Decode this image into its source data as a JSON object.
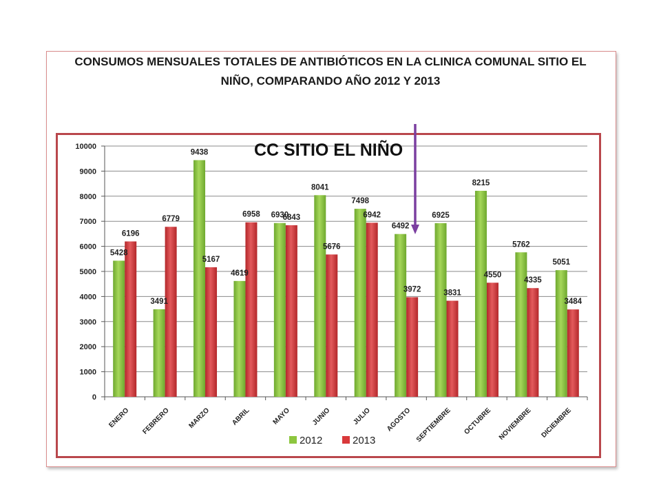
{
  "slide": {
    "title_line1": "CONSUMOS MENSUALES TOTALES DE ANTIBIÓTICOS EN LA CLINICA COMUNAL SITIO EL",
    "title_line2": "NIÑO, COMPARANDO AÑO 2012 Y 2013"
  },
  "chart_data": {
    "type": "bar",
    "title": "CC SITIO EL NIÑO",
    "xlabel": "",
    "ylabel": "",
    "ylim": [
      0,
      10000
    ],
    "yticks": [
      0,
      1000,
      2000,
      3000,
      4000,
      5000,
      6000,
      7000,
      8000,
      9000,
      10000
    ],
    "grid": true,
    "legend_position": "bottom",
    "categories": [
      "ENERO",
      "FEBRERO",
      "MARZO",
      "ABRIL",
      "MAYO",
      "JUNIO",
      "JULIO",
      "AGOSTO",
      "SEPTIEMBRE",
      "OCTUBRE",
      "NOVIEMBRE",
      "DICIEMBRE"
    ],
    "series": [
      {
        "name": "2012",
        "color": "#8dc63f",
        "values": [
          5428,
          3491,
          9438,
          4619,
          6930,
          8041,
          7498,
          6492,
          6925,
          8215,
          5762,
          5051
        ]
      },
      {
        "name": "2013",
        "color": "#d9393b",
        "values": [
          6196,
          6779,
          5167,
          6958,
          6843,
          5676,
          6942,
          3972,
          3831,
          4550,
          4335,
          3484
        ]
      }
    ],
    "annotation_arrow": {
      "category": "AGOSTO",
      "color": "#7b3fa0"
    }
  }
}
